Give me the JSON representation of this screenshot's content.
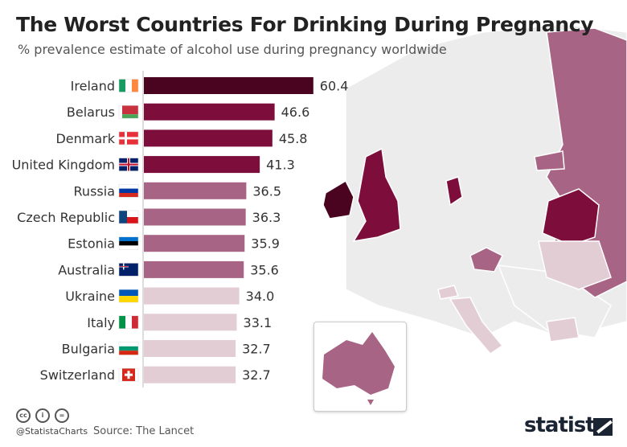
{
  "chart_data": {
    "type": "bar",
    "orientation": "horizontal",
    "title": "The Worst Countries For Drinking During Pregnancy",
    "subtitle": "% prevalence estimate of alcohol use during pregnancy worldwide",
    "categories": [
      "Ireland",
      "Belarus",
      "Denmark",
      "United Kingdom",
      "Russia",
      "Czech Republic",
      "Estonia",
      "Australia",
      "Ukraine",
      "Italy",
      "Bulgaria",
      "Switzerland"
    ],
    "values": [
      60.4,
      46.6,
      45.8,
      41.3,
      36.5,
      36.3,
      35.9,
      35.6,
      34.0,
      33.1,
      32.7,
      32.7
    ],
    "labels": [
      "60.4",
      "46.6",
      "45.8",
      "41.3",
      "36.5",
      "36.3",
      "35.9",
      "35.6",
      "34.0",
      "33.1",
      "32.7",
      "32.7"
    ],
    "tiers": [
      0,
      1,
      1,
      1,
      2,
      2,
      2,
      2,
      3,
      3,
      3,
      3
    ],
    "flags": [
      "ireland-flag",
      "belarus-flag",
      "denmark-flag",
      "uk-flag",
      "russia-flag",
      "czech-flag",
      "estonia-flag",
      "australia-flag",
      "ukraine-flag",
      "italy-flag",
      "bulgaria-flag",
      "switzerland-flag"
    ],
    "xlabel": "",
    "ylabel": "",
    "xlim": [
      0,
      65
    ]
  },
  "colors": {
    "tier0": "#4a0420",
    "tier1": "#7d0e3b",
    "tier2": "#a86484",
    "tier3": "#e3cdd4",
    "land": "#ececec"
  },
  "footer": {
    "handle": "@StatistaCharts",
    "source": "Source: The Lancet",
    "brand": "statista",
    "cc": [
      "cc",
      "i",
      "="
    ]
  }
}
